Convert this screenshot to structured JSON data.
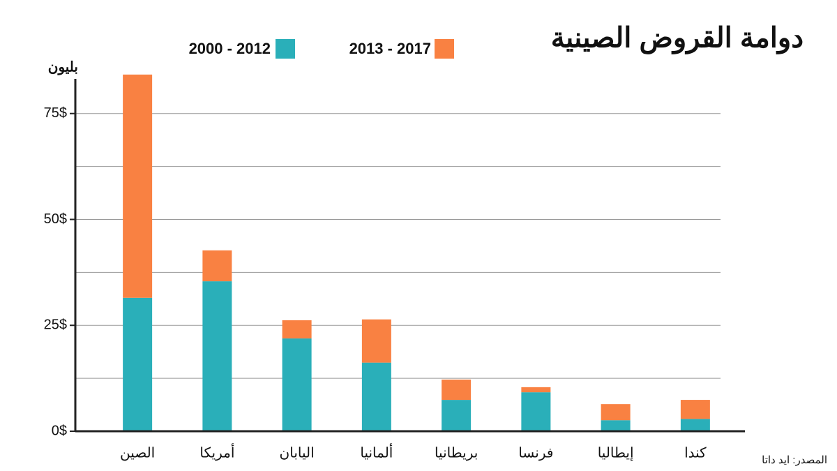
{
  "chart_data": {
    "type": "stacked_bar",
    "title": "دوامة القروض الصينية",
    "y_unit_label": "بليون",
    "source": "المصدر: ايد داتا",
    "categories": [
      "الصين",
      "أمريكا",
      "اليابان",
      "ألمانيا",
      "بريطانيا",
      "فرنسا",
      "إيطاليا",
      "كندا"
    ],
    "series": [
      {
        "name": "2000 - 2012",
        "color": "#2aafb9",
        "values": [
          31.5,
          35.4,
          21.9,
          16.2,
          7.4,
          9.2,
          2.6,
          2.9
        ]
      },
      {
        "name": "2013 - 2017",
        "color": "#f98142",
        "values": [
          52.7,
          7.3,
          4.3,
          10.2,
          4.8,
          1.2,
          3.8,
          4.5
        ]
      }
    ],
    "ylim": [
      0,
      85
    ],
    "yticks": [
      {
        "value": 0,
        "label": "0$"
      },
      {
        "value": 25,
        "label": "25$"
      },
      {
        "value": 50,
        "label": "50$"
      },
      {
        "value": 75,
        "label": "75$"
      }
    ],
    "minor_yticks": [
      12.5,
      37.5,
      62.5
    ],
    "grid": true
  }
}
